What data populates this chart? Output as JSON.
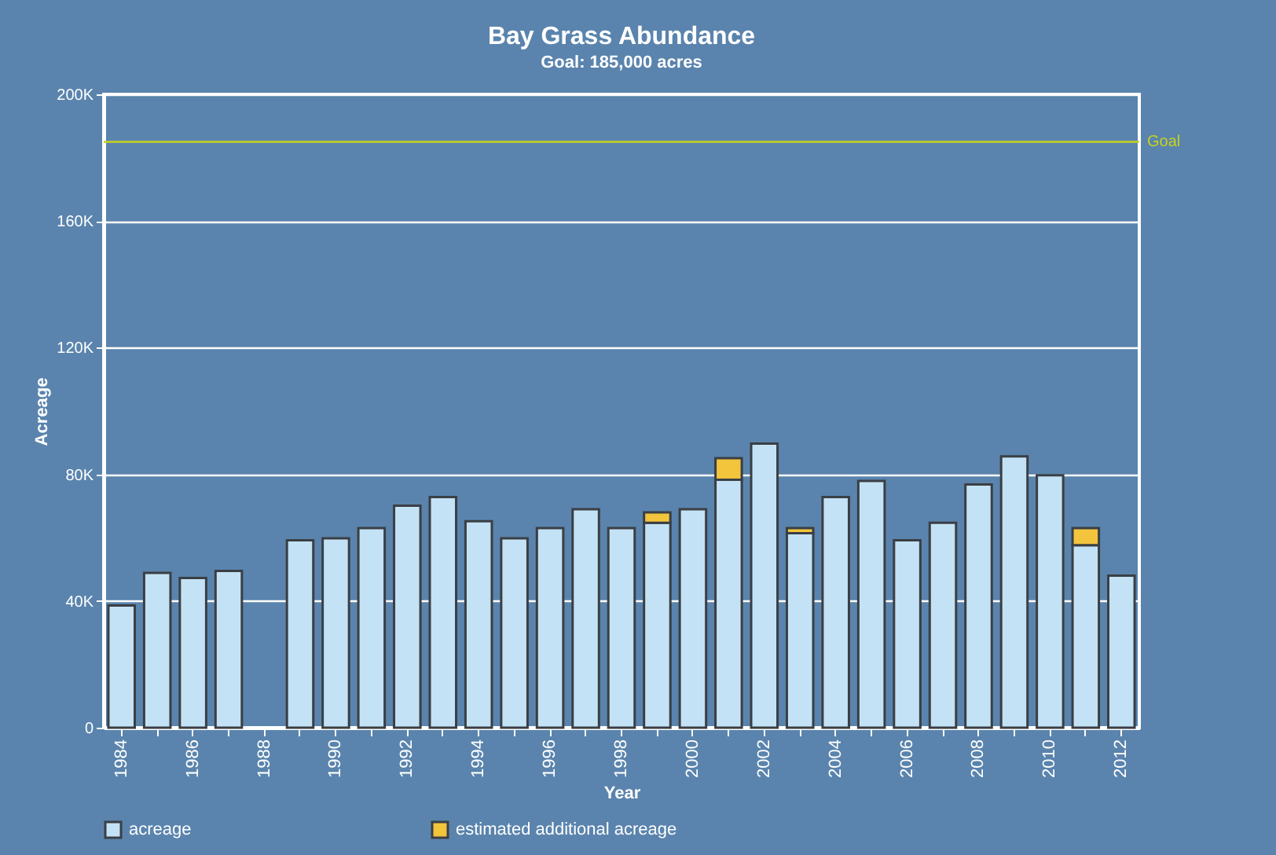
{
  "chart_data": {
    "type": "bar",
    "title": "Bay Grass Abundance",
    "subtitle": "Goal: 185,000 acres",
    "xlabel": "Year",
    "ylabel": "Acreage",
    "categories": [
      "1984",
      null,
      "1986",
      null,
      "1988",
      null,
      "1990",
      null,
      "1992",
      null,
      "1994",
      null,
      "1996",
      null,
      "1998",
      null,
      "2000",
      null,
      "2002",
      null,
      "2004",
      null,
      "2006",
      null,
      "2008",
      null,
      "2010",
      null,
      "2012"
    ],
    "stacked": true,
    "series": [
      {
        "name": "acreage",
        "color": "#c4e2f5",
        "values": [
          38600,
          48900,
          47300,
          49500,
          null,
          59200,
          59800,
          63000,
          70100,
          72800,
          65200,
          59800,
          63000,
          69000,
          63000,
          64700,
          69000,
          78300,
          89700,
          61400,
          72800,
          77900,
          59200,
          64700,
          76800,
          85700,
          79700,
          57600,
          48000
        ]
      },
      {
        "name": "estimated additional acreage",
        "color": "#f2c53d",
        "values": [
          null,
          null,
          null,
          null,
          null,
          null,
          null,
          null,
          null,
          null,
          null,
          null,
          null,
          null,
          null,
          3300,
          null,
          6800,
          null,
          1600,
          null,
          null,
          null,
          null,
          null,
          null,
          null,
          5400,
          null
        ]
      }
    ],
    "ylim": [
      0,
      200000
    ],
    "yticks": [
      {
        "value": 0,
        "label": "0"
      },
      {
        "value": 40000,
        "label": "40K"
      },
      {
        "value": 80000,
        "label": "80K"
      },
      {
        "value": 120000,
        "label": "120K"
      },
      {
        "value": 160000,
        "label": "160K"
      },
      {
        "value": 200000,
        "label": "200K"
      }
    ],
    "ref_lines": [
      {
        "axis": "y",
        "value": 185000,
        "label": "Goal",
        "color": "#c8d21e"
      }
    ],
    "grid": "y",
    "legend": "bottom"
  }
}
